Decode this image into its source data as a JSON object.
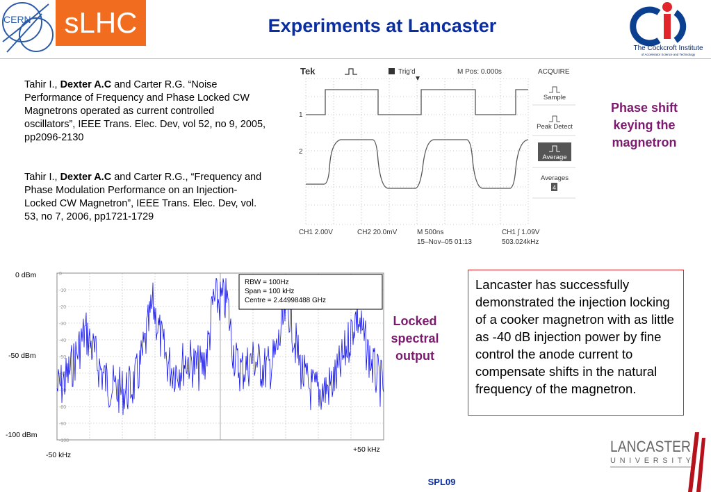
{
  "header": {
    "cern_logo_text": "CERN",
    "slhc_label": "sLHC",
    "title": "Experiments at Lancaster",
    "cockcroft_name": "The Cockcroft Institute",
    "cockcroft_sub": "of Accelerator Science and Technology"
  },
  "references": [
    {
      "pre": "Tahir I., ",
      "bold": "Dexter A.C",
      "post": " and Carter R.G. “Noise Performance of Frequency and Phase Locked CW Magnetrons operated as current controlled oscillators”, IEEE Trans. Elec. Dev, vol 52, no 9, 2005, pp2096-2130"
    },
    {
      "pre": "Tahir I., ",
      "bold": "Dexter A.C",
      "post": " and Carter R.G., “Frequency and Phase Modulation Performance on an Injection-Locked CW Magnetron”, IEEE Trans. Elec. Dev, vol. 53, no 7, 2006, pp1721-1729"
    }
  ],
  "oscilloscope": {
    "brand": "Tek",
    "trig": "Trig’d",
    "mpos": "M Pos: 0.000s",
    "acquire": "ACQUIRE",
    "menu": [
      "Sample",
      "Peak Detect",
      "Average",
      "Averages"
    ],
    "averages_value": "4",
    "ch1": "CH1  2.00V",
    "ch2": "CH2  20.0mV",
    "m": "M 500ns",
    "date": "15–Nov–05 01:13",
    "ch1_trig": "CH1 ∫ 1.09V",
    "freq": "503.024kHz"
  },
  "phase_label": [
    "Phase shift",
    "keying the",
    "magnetron"
  ],
  "spectrum": {
    "y_top": "0 dBm",
    "y_mid": "-50 dBm",
    "y_bot": "-100 dBm",
    "x_left": "-50 kHz",
    "x_right": "+50 kHz",
    "rbw": "RBW = 100Hz",
    "span": "Span = 100 kHz",
    "centre": "Centre = 2.44998488 GHz",
    "ticks": [
      "0",
      "-10",
      "-20",
      "-30",
      "-40",
      "-50",
      "-60",
      "-70",
      "-80",
      "-90",
      "-100"
    ]
  },
  "locked_label": [
    "Locked",
    "spectral",
    "output"
  ],
  "description": "Lancaster has successfully demonstrated the injection locking of a cooker magnetron with as little as -40 dB injection power by fine control the anode current to compensate shifts in the natural frequency of the magnetron.",
  "footer": "SPL09",
  "lancaster": {
    "name": "LANCASTER",
    "university": "U N I V E R S I T Y"
  }
}
